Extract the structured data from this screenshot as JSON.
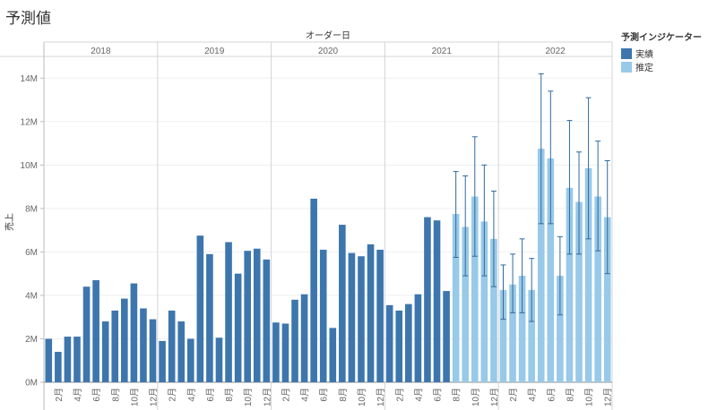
{
  "chart_data": {
    "type": "bar",
    "title": "予測値",
    "column_header": "オーダー日",
    "ylabel": "売上",
    "ylim": [
      0,
      15
    ],
    "y_unit": "M",
    "y_ticks": [
      "0M",
      "2M",
      "4M",
      "6M",
      "8M",
      "10M",
      "12M",
      "14M"
    ],
    "grid": true,
    "legend": {
      "title": "予測インジケーター",
      "position": "right",
      "items": [
        {
          "label": "実績",
          "color": "#3d76ad"
        },
        {
          "label": "推定",
          "color": "#98c9e8"
        }
      ]
    },
    "years": [
      "2018",
      "2019",
      "2020",
      "2021",
      "2022"
    ],
    "month_labels": [
      "2月",
      "4月",
      "6月",
      "8月",
      "10月",
      "12月"
    ],
    "series": [
      {
        "name": "実績",
        "values": [
          [
            2.0,
            1.4,
            2.1,
            2.1,
            4.4,
            4.7,
            2.8,
            3.3,
            3.85,
            4.55,
            3.4,
            2.9
          ],
          [
            1.9,
            3.3,
            2.8,
            2.0,
            6.75,
            5.9,
            2.05,
            6.45,
            5.0,
            6.05,
            6.15,
            5.65
          ],
          [
            2.75,
            2.7,
            3.8,
            4.05,
            8.45,
            6.1,
            2.5,
            7.25,
            5.95,
            5.8,
            6.35,
            6.1
          ],
          [
            3.55,
            3.3,
            3.6,
            4.05,
            7.6,
            7.45,
            4.2,
            null,
            null,
            null,
            null,
            null
          ],
          [
            null,
            null,
            null,
            null,
            null,
            null,
            null,
            null,
            null,
            null,
            null,
            null
          ]
        ]
      },
      {
        "name": "推定",
        "values": [
          [
            null,
            null,
            null,
            null,
            null,
            null,
            null,
            null,
            null,
            null,
            null,
            null
          ],
          [
            null,
            null,
            null,
            null,
            null,
            null,
            null,
            null,
            null,
            null,
            null,
            null
          ],
          [
            null,
            null,
            null,
            null,
            null,
            null,
            null,
            null,
            null,
            null,
            null,
            null
          ],
          [
            null,
            null,
            null,
            null,
            null,
            null,
            null,
            7.75,
            7.15,
            8.55,
            7.4,
            6.6
          ],
          [
            4.25,
            4.5,
            4.9,
            4.25,
            10.75,
            10.3,
            4.9,
            8.95,
            8.3,
            9.85,
            8.55,
            7.6
          ]
        ],
        "error_low": [
          [
            null,
            null,
            null,
            null,
            null,
            null,
            null,
            null,
            null,
            null,
            null,
            null
          ],
          [
            null,
            null,
            null,
            null,
            null,
            null,
            null,
            null,
            null,
            null,
            null,
            null
          ],
          [
            null,
            null,
            null,
            null,
            null,
            null,
            null,
            null,
            null,
            null,
            null,
            null
          ],
          [
            null,
            null,
            null,
            null,
            null,
            null,
            null,
            5.75,
            4.9,
            5.8,
            4.9,
            4.4
          ],
          [
            2.9,
            3.2,
            3.2,
            2.8,
            7.3,
            7.3,
            3.1,
            5.9,
            5.9,
            6.6,
            6.05,
            5.0
          ]
        ],
        "error_high": [
          [
            null,
            null,
            null,
            null,
            null,
            null,
            null,
            null,
            null,
            null,
            null,
            null
          ],
          [
            null,
            null,
            null,
            null,
            null,
            null,
            null,
            null,
            null,
            null,
            null,
            null
          ],
          [
            null,
            null,
            null,
            null,
            null,
            null,
            null,
            null,
            null,
            null,
            null,
            null
          ],
          [
            null,
            null,
            null,
            null,
            null,
            null,
            null,
            9.7,
            9.5,
            11.3,
            10.0,
            8.8
          ],
          [
            5.4,
            5.9,
            6.6,
            5.7,
            14.2,
            13.4,
            6.7,
            12.05,
            10.6,
            13.1,
            11.1,
            10.2
          ]
        ]
      }
    ]
  }
}
